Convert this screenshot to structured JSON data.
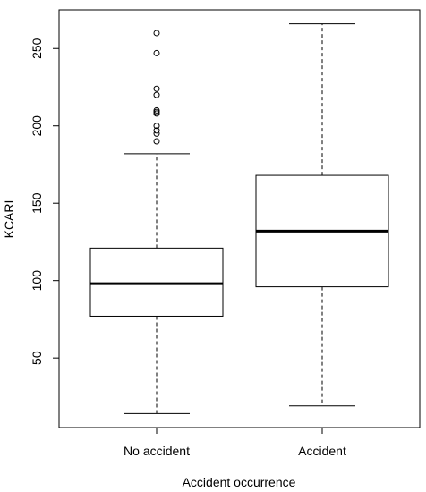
{
  "chart_data": {
    "type": "boxplot",
    "title": "",
    "xlabel": "Accident occurrence",
    "ylabel": "KCARI",
    "ylim": [
      5,
      275
    ],
    "y_ticks": [
      50,
      100,
      150,
      200,
      250
    ],
    "grid": false,
    "categories": [
      "No accident",
      "Accident"
    ],
    "series": [
      {
        "category": "No accident",
        "whisker_low": 14,
        "q1": 77,
        "median": 98,
        "q3": 121,
        "whisker_high": 182,
        "outliers": [
          190,
          195,
          197,
          200,
          208,
          209,
          210,
          220,
          224,
          247,
          260
        ]
      },
      {
        "category": "Accident",
        "whisker_low": 19,
        "q1": 96,
        "median": 132,
        "q3": 168,
        "whisker_high": 266,
        "outliers": []
      }
    ]
  }
}
